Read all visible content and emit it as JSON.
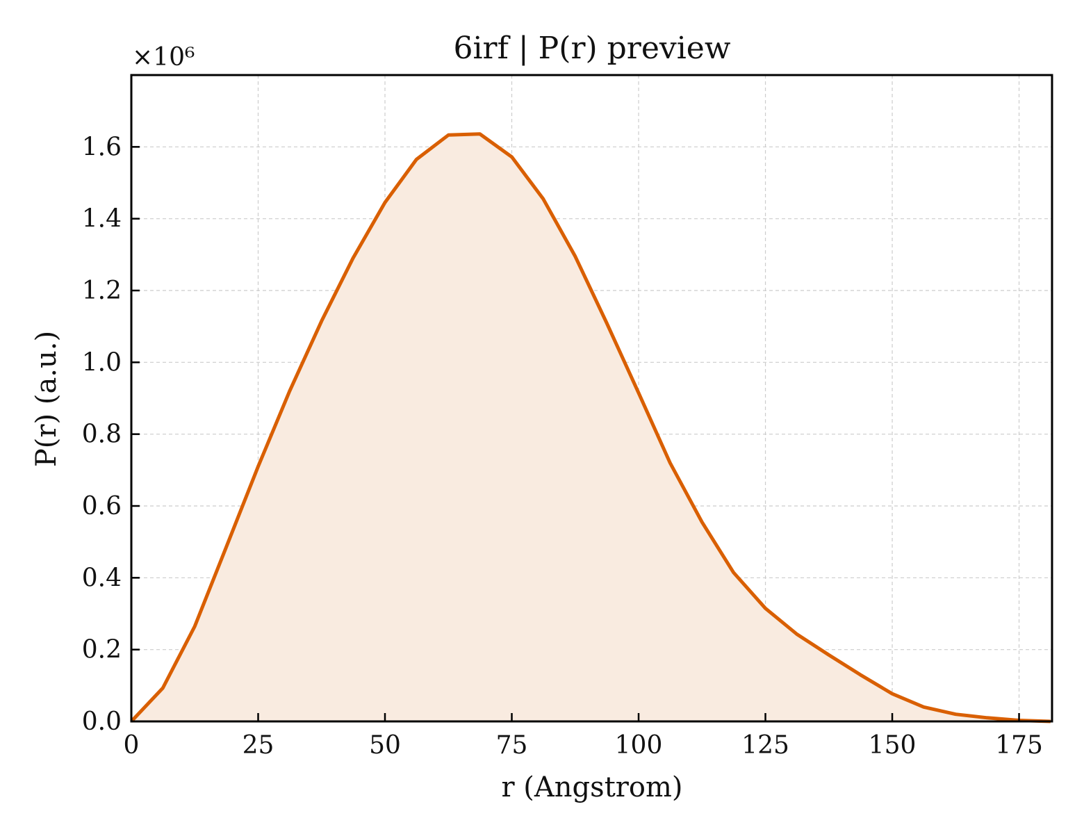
{
  "chart_data": {
    "type": "area",
    "title": "6irf | P(r) preview",
    "xlabel": "r (Angstrom)",
    "ylabel": "P(r) (a.u.)",
    "y_offset_label": "×10⁶",
    "xlim": [
      0,
      181.5
    ],
    "ylim": [
      0,
      1.8
    ],
    "x_ticks": [
      0,
      25,
      50,
      75,
      100,
      125,
      150,
      175
    ],
    "x_tick_labels": [
      "0",
      "25",
      "50",
      "75",
      "100",
      "125",
      "150",
      "175"
    ],
    "y_ticks": [
      0.0,
      0.2,
      0.4,
      0.6,
      0.8,
      1.0,
      1.2,
      1.4,
      1.6
    ],
    "y_tick_labels": [
      "0.0",
      "0.2",
      "0.4",
      "0.6",
      "0.8",
      "1.0",
      "1.2",
      "1.4",
      "1.6"
    ],
    "grid": true,
    "line_color": "#d95f02",
    "fill_color": "#f9ebe0",
    "series": [
      {
        "x": [
          0,
          6.2,
          12.5,
          18.7,
          25.0,
          31.2,
          37.5,
          43.7,
          50.0,
          56.2,
          62.5,
          68.7,
          75.0,
          81.2,
          87.5,
          93.7,
          100.0,
          106.2,
          112.5,
          118.7,
          125.0,
          131.2,
          137.5,
          143.7,
          150.0,
          156.2,
          162.5,
          168.7,
          175.0,
          181.2
        ],
        "values": [
          0.0,
          0.093,
          0.265,
          0.485,
          0.71,
          0.92,
          1.115,
          1.29,
          1.445,
          1.565,
          1.633,
          1.636,
          1.572,
          1.455,
          1.295,
          1.11,
          0.915,
          0.72,
          0.555,
          0.415,
          0.315,
          0.243,
          0.185,
          0.13,
          0.077,
          0.04,
          0.02,
          0.01,
          0.003,
          0.0
        ]
      }
    ]
  }
}
